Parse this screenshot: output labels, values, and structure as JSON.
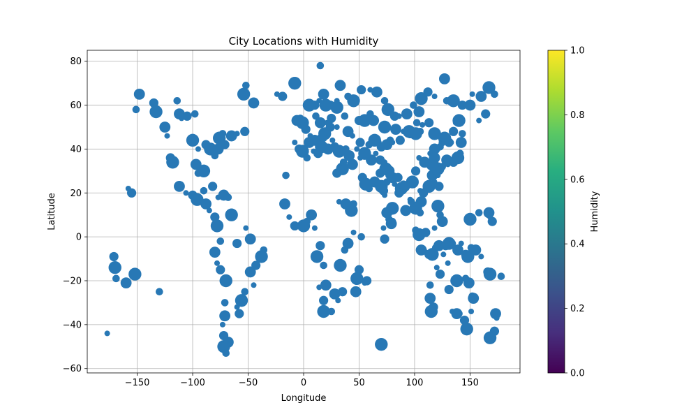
{
  "chart_data": {
    "type": "scatter",
    "title": "City Locations with Humidity",
    "xlabel": "Longitude",
    "ylabel": "Latitude",
    "xlim": [
      -195,
      195
    ],
    "ylim": [
      -62,
      85
    ],
    "xticks": [
      -150,
      -100,
      -50,
      0,
      50,
      100,
      150
    ],
    "yticks": [
      -60,
      -40,
      -20,
      0,
      20,
      40,
      60,
      80
    ],
    "grid": true,
    "marker_color": "#2878b5",
    "colorbar": {
      "label": "Humidity",
      "range": [
        0,
        1
      ],
      "ticks": [
        "0.0",
        "0.2",
        "0.4",
        "0.6",
        "0.8",
        "1.0"
      ],
      "colormap": "viridis"
    },
    "points": [
      [
        -177,
        -44
      ],
      [
        -171,
        -9
      ],
      [
        -170,
        -14
      ],
      [
        -169,
        -19
      ],
      [
        -160,
        -21
      ],
      [
        -158,
        22
      ],
      [
        -155,
        20
      ],
      [
        -152,
        -17
      ],
      [
        -151,
        58
      ],
      [
        -148,
        65
      ],
      [
        -150,
        -18
      ],
      [
        -135,
        61
      ],
      [
        -133,
        57
      ],
      [
        -130,
        -25
      ],
      [
        -125,
        50
      ],
      [
        -123,
        46
      ],
      [
        -120,
        36
      ],
      [
        -118,
        34
      ],
      [
        -114,
        62
      ],
      [
        -112,
        56
      ],
      [
        -110,
        54
      ],
      [
        -105,
        55
      ],
      [
        -100,
        44
      ],
      [
        -98,
        56
      ],
      [
        -112,
        23
      ],
      [
        -106,
        20
      ],
      [
        -100,
        19
      ],
      [
        -96,
        17
      ],
      [
        -90,
        21
      ],
      [
        -88,
        15
      ],
      [
        -85,
        12
      ],
      [
        -80,
        9
      ],
      [
        -78,
        5
      ],
      [
        -75,
        -2
      ],
      [
        -80,
        -7
      ],
      [
        -78,
        -12
      ],
      [
        -75,
        -15
      ],
      [
        -70,
        -20
      ],
      [
        -71,
        -30
      ],
      [
        -71,
        -36
      ],
      [
        -73,
        -40
      ],
      [
        -72,
        -45
      ],
      [
        -72,
        -50
      ],
      [
        -70,
        -53
      ],
      [
        -68,
        -48
      ],
      [
        -60,
        -32
      ],
      [
        -58,
        -35
      ],
      [
        -56,
        -29
      ],
      [
        -53,
        -25
      ],
      [
        -48,
        -16
      ],
      [
        -45,
        -22
      ],
      [
        -43,
        -13
      ],
      [
        -38,
        -9
      ],
      [
        -36,
        -6
      ],
      [
        -48,
        -1
      ],
      [
        -52,
        4
      ],
      [
        -60,
        -3
      ],
      [
        -65,
        10
      ],
      [
        -68,
        18
      ],
      [
        -72,
        19
      ],
      [
        -77,
        18
      ],
      [
        -82,
        23
      ],
      [
        -90,
        30
      ],
      [
        -95,
        29
      ],
      [
        -97,
        33
      ],
      [
        -95,
        40
      ],
      [
        -88,
        42
      ],
      [
        -84,
        40
      ],
      [
        -80,
        37
      ],
      [
        -77,
        40
      ],
      [
        -74,
        41
      ],
      [
        -71,
        42
      ],
      [
        -76,
        45
      ],
      [
        -73,
        47
      ],
      [
        -65,
        46
      ],
      [
        -60,
        47
      ],
      [
        -53,
        48
      ],
      [
        -54,
        65
      ],
      [
        -52,
        69
      ],
      [
        -45,
        61
      ],
      [
        -24,
        65
      ],
      [
        -19,
        64
      ],
      [
        -8,
        70
      ],
      [
        -16,
        28
      ],
      [
        -17,
        15
      ],
      [
        -13,
        9
      ],
      [
        -8,
        5
      ],
      [
        0,
        5
      ],
      [
        3,
        7
      ],
      [
        7,
        10
      ],
      [
        10,
        4
      ],
      [
        15,
        -4
      ],
      [
        12,
        -9
      ],
      [
        18,
        -13
      ],
      [
        20,
        -22
      ],
      [
        14,
        -23
      ],
      [
        18,
        -29
      ],
      [
        18,
        -34
      ],
      [
        25,
        -34
      ],
      [
        28,
        -26
      ],
      [
        31,
        -29
      ],
      [
        35,
        -25
      ],
      [
        33,
        -13
      ],
      [
        37,
        -6
      ],
      [
        40,
        -3
      ],
      [
        45,
        2
      ],
      [
        50,
        -15
      ],
      [
        48,
        -19
      ],
      [
        52,
        0
      ],
      [
        47,
        -25
      ],
      [
        55,
        -21
      ],
      [
        57,
        -20
      ],
      [
        43,
        12
      ],
      [
        45,
        15
      ],
      [
        38,
        15
      ],
      [
        32,
        16
      ],
      [
        30,
        29
      ],
      [
        35,
        31
      ],
      [
        36,
        34
      ],
      [
        44,
        33
      ],
      [
        51,
        36
      ],
      [
        53,
        27
      ],
      [
        56,
        24
      ],
      [
        59,
        22
      ],
      [
        64,
        25
      ],
      [
        67,
        25
      ],
      [
        69,
        29
      ],
      [
        74,
        31
      ],
      [
        77,
        28
      ],
      [
        80,
        27
      ],
      [
        82,
        24
      ],
      [
        85,
        27
      ],
      [
        88,
        22
      ],
      [
        90,
        24
      ],
      [
        91,
        23
      ],
      [
        96,
        17
      ],
      [
        100,
        14
      ],
      [
        101,
        13
      ],
      [
        105,
        11
      ],
      [
        106,
        16
      ],
      [
        105,
        21
      ],
      [
        108,
        20
      ],
      [
        113,
        23
      ],
      [
        114,
        22
      ],
      [
        116,
        28
      ],
      [
        118,
        25
      ],
      [
        120,
        30
      ],
      [
        121,
        31
      ],
      [
        125,
        32
      ],
      [
        129,
        35
      ],
      [
        130,
        33
      ],
      [
        135,
        34
      ],
      [
        139,
        36
      ],
      [
        141,
        38
      ],
      [
        142,
        43
      ],
      [
        137,
        52
      ],
      [
        131,
        43
      ],
      [
        127,
        45
      ],
      [
        123,
        41
      ],
      [
        118,
        40
      ],
      [
        114,
        38
      ],
      [
        117,
        36
      ],
      [
        116,
        33
      ],
      [
        112,
        34
      ],
      [
        109,
        34
      ],
      [
        104,
        36
      ],
      [
        101,
        30
      ],
      [
        98,
        25
      ],
      [
        97,
        16
      ],
      [
        92,
        12
      ],
      [
        88,
        21
      ],
      [
        86,
        20
      ],
      [
        80,
        13
      ],
      [
        77,
        8
      ],
      [
        79,
        6
      ],
      [
        72,
        4
      ],
      [
        73,
        -1
      ],
      [
        70,
        -49
      ],
      [
        80,
        7
      ],
      [
        75,
        11
      ],
      [
        73,
        19
      ],
      [
        72,
        21
      ],
      [
        70,
        23
      ],
      [
        75,
        25
      ],
      [
        77,
        30
      ],
      [
        73,
        34
      ],
      [
        69,
        35
      ],
      [
        64,
        44
      ],
      [
        67,
        43
      ],
      [
        75,
        42
      ],
      [
        80,
        43
      ],
      [
        87,
        44
      ],
      [
        95,
        48
      ],
      [
        102,
        52
      ],
      [
        104,
        57
      ],
      [
        107,
        51
      ],
      [
        113,
        52
      ],
      [
        118,
        47
      ],
      [
        125,
        43
      ],
      [
        128,
        45
      ],
      [
        133,
        43
      ],
      [
        135,
        48
      ],
      [
        140,
        53
      ],
      [
        143,
        47
      ],
      [
        150,
        60
      ],
      [
        158,
        53
      ],
      [
        164,
        56
      ],
      [
        167,
        68
      ],
      [
        172,
        65
      ],
      [
        160,
        64
      ],
      [
        152,
        65
      ],
      [
        143,
        60
      ],
      [
        135,
        62
      ],
      [
        129,
        62
      ],
      [
        127,
        72
      ],
      [
        118,
        64
      ],
      [
        112,
        66
      ],
      [
        106,
        63
      ],
      [
        99,
        60
      ],
      [
        93,
        56
      ],
      [
        86,
        55
      ],
      [
        82,
        55
      ],
      [
        76,
        58
      ],
      [
        73,
        62
      ],
      [
        66,
        66
      ],
      [
        60,
        67
      ],
      [
        52,
        67
      ],
      [
        45,
        62
      ],
      [
        40,
        64
      ],
      [
        33,
        69
      ],
      [
        30,
        62
      ],
      [
        24,
        60
      ],
      [
        20,
        60
      ],
      [
        15,
        78
      ],
      [
        18,
        65
      ],
      [
        14,
        62
      ],
      [
        10,
        60
      ],
      [
        5,
        60
      ],
      [
        11,
        55
      ],
      [
        15,
        52
      ],
      [
        21,
        52
      ],
      [
        25,
        54
      ],
      [
        30,
        59
      ],
      [
        37,
        55
      ],
      [
        40,
        48
      ],
      [
        44,
        46
      ],
      [
        50,
        53
      ],
      [
        55,
        53
      ],
      [
        60,
        56
      ],
      [
        63,
        53
      ],
      [
        30,
        50
      ],
      [
        24,
        50
      ],
      [
        19,
        47
      ],
      [
        15,
        45
      ],
      [
        10,
        44
      ],
      [
        6,
        46
      ],
      [
        2,
        49
      ],
      [
        -1,
        52
      ],
      [
        -3,
        54
      ],
      [
        -6,
        53
      ],
      [
        -8,
        43
      ],
      [
        -4,
        40
      ],
      [
        -1,
        39
      ],
      [
        3,
        36
      ],
      [
        5,
        43
      ],
      [
        9,
        39
      ],
      [
        13,
        38
      ],
      [
        16,
        41
      ],
      [
        18,
        45
      ],
      [
        22,
        40
      ],
      [
        26,
        44
      ],
      [
        28,
        41
      ],
      [
        32,
        39
      ],
      [
        38,
        40
      ],
      [
        41,
        37
      ],
      [
        48,
        40
      ],
      [
        51,
        43
      ],
      [
        55,
        38
      ],
      [
        59,
        42
      ],
      [
        61,
        35
      ],
      [
        65,
        38
      ],
      [
        70,
        41
      ],
      [
        73,
        50
      ],
      [
        78,
        44
      ],
      [
        83,
        49
      ],
      [
        90,
        48
      ],
      [
        96,
        47
      ],
      [
        101,
        47
      ],
      [
        105,
        48
      ],
      [
        118,
        36
      ],
      [
        121,
        28
      ],
      [
        122,
        23
      ],
      [
        121,
        14
      ],
      [
        123,
        10
      ],
      [
        125,
        7
      ],
      [
        118,
        4
      ],
      [
        110,
        2
      ],
      [
        104,
        1
      ],
      [
        101,
        3
      ],
      [
        106,
        -6
      ],
      [
        110,
        -7
      ],
      [
        113,
        -8
      ],
      [
        116,
        -8
      ],
      [
        119,
        -5
      ],
      [
        122,
        -4
      ],
      [
        126,
        -8
      ],
      [
        128,
        -4
      ],
      [
        131,
        -3
      ],
      [
        134,
        -3
      ],
      [
        139,
        -6
      ],
      [
        142,
        -3
      ],
      [
        146,
        -8
      ],
      [
        148,
        -9
      ],
      [
        151,
        -5
      ],
      [
        155,
        -6
      ],
      [
        160,
        -9
      ],
      [
        166,
        -16
      ],
      [
        168,
        -17
      ],
      [
        178,
        -18
      ],
      [
        173,
        -35
      ],
      [
        174,
        -37
      ],
      [
        172,
        -43
      ],
      [
        168,
        -46
      ],
      [
        152,
        -27
      ],
      [
        153,
        -28
      ],
      [
        151,
        -34
      ],
      [
        145,
        -38
      ],
      [
        147,
        -42
      ],
      [
        140,
        -35
      ],
      [
        138,
        -35
      ],
      [
        130,
        -12
      ],
      [
        131,
        -24
      ],
      [
        138,
        -20
      ],
      [
        146,
        -19
      ],
      [
        149,
        -21
      ],
      [
        134,
        -34
      ],
      [
        117,
        -32
      ],
      [
        115,
        -34
      ],
      [
        114,
        -22
      ],
      [
        114,
        -28
      ],
      [
        120,
        -14
      ],
      [
        123,
        -17
      ],
      [
        150,
        8
      ],
      [
        158,
        11
      ],
      [
        167,
        11
      ],
      [
        168,
        9
      ],
      [
        170,
        7
      ]
    ]
  }
}
